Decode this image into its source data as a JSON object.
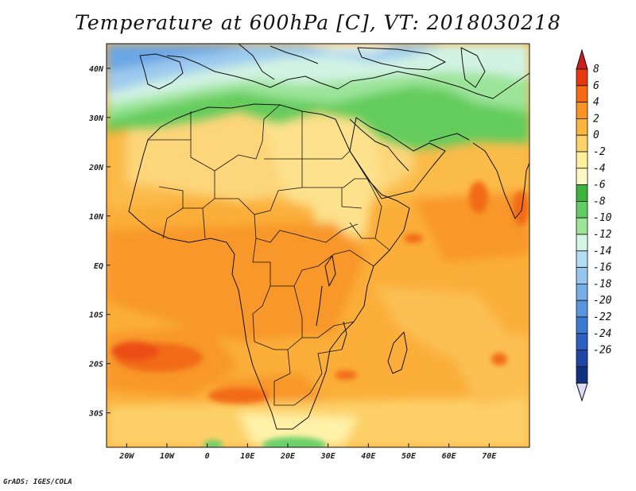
{
  "title": "Temperature at 600hPa [C], VT: 2018030218",
  "credit": "GrADS: IGES/COLA",
  "map": {
    "projection": "latlon",
    "lon_range": [
      -25,
      80
    ],
    "lat_range": [
      -37,
      45
    ],
    "x_ticks": [
      {
        "value": -20,
        "label": "20W"
      },
      {
        "value": -10,
        "label": "10W"
      },
      {
        "value": 0,
        "label": "0"
      },
      {
        "value": 10,
        "label": "10E"
      },
      {
        "value": 20,
        "label": "20E"
      },
      {
        "value": 30,
        "label": "30E"
      },
      {
        "value": 40,
        "label": "40E"
      },
      {
        "value": 50,
        "label": "50E"
      },
      {
        "value": 60,
        "label": "60E"
      },
      {
        "value": 70,
        "label": "70E"
      }
    ],
    "y_ticks": [
      {
        "value": 40,
        "label": "40N"
      },
      {
        "value": 30,
        "label": "30N"
      },
      {
        "value": 20,
        "label": "20N"
      },
      {
        "value": 10,
        "label": "10N"
      },
      {
        "value": 0,
        "label": "EQ"
      },
      {
        "value": -10,
        "label": "10S"
      },
      {
        "value": -20,
        "label": "20S"
      },
      {
        "value": -30,
        "label": "30S"
      }
    ]
  },
  "colorbar": {
    "labels": [
      "8",
      "6",
      "4",
      "2",
      "0",
      "-2",
      "-4",
      "-6",
      "-8",
      "-10",
      "-12",
      "-14",
      "-16",
      "-18",
      "-20",
      "-22",
      "-24",
      "-26"
    ],
    "colors": [
      "#e8360e",
      "#f66a12",
      "#f99520",
      "#fbb53c",
      "#fdd268",
      "#fef09a",
      "#fff8c4",
      "#3cb43c",
      "#62cd62",
      "#9ce496",
      "#d4f5e4",
      "#b4dcf2",
      "#96c6ee",
      "#78aee8",
      "#5a96e0",
      "#3c7ad6",
      "#2c60c2",
      "#1e46a8",
      "#123080"
    ],
    "over_color": "#c81e1e",
    "under_color": "#dcdcf8"
  }
}
